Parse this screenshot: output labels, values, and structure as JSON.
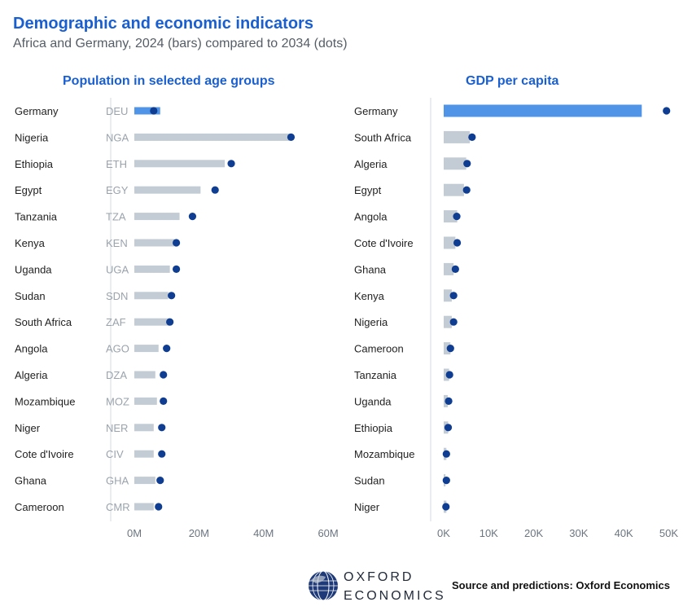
{
  "title": "Demographic and economic indicators",
  "subtitle": "Africa and Germany, 2024 (bars) compared to 2034 (dots)",
  "source": "Source and predictions: Oxford Economics",
  "logo": {
    "line1": "OXFORD",
    "line2": "ECONOMICS"
  },
  "colors": {
    "highlight_bar": "#4f94e6",
    "bar": "#c3ccd4",
    "dot": "#0f3d91",
    "title": "#1a5fd0"
  },
  "chart_data": [
    {
      "type": "bar",
      "title": "Population in selected age groups",
      "categories": [
        "Germany",
        "Nigeria",
        "Ethiopia",
        "Egypt",
        "Tanzania",
        "Kenya",
        "Uganda",
        "Sudan",
        "South Africa",
        "Angola",
        "Algeria",
        "Mozambique",
        "Niger",
        "Cote d'Ivoire",
        "Ghana",
        "Cameroon"
      ],
      "codes": [
        "DEU",
        "NGA",
        "ETH",
        "EGY",
        "TZA",
        "KEN",
        "UGA",
        "SDN",
        "ZAF",
        "AGO",
        "DZA",
        "MOZ",
        "NER",
        "CIV",
        "GHA",
        "CMR"
      ],
      "series": [
        {
          "name": "2024",
          "values": [
            8,
            48,
            28,
            20.5,
            14,
            12.5,
            11,
            10.5,
            11,
            7.5,
            6.5,
            7,
            6,
            6,
            6.5,
            6
          ]
        },
        {
          "name": "2034",
          "values": [
            6,
            48.5,
            30,
            25,
            18,
            13,
            13,
            11.5,
            11,
            10,
            9,
            9,
            8.5,
            8.5,
            8,
            7.5
          ]
        }
      ],
      "xlim": [
        0,
        63
      ],
      "xticks": [
        0,
        20,
        40,
        60
      ],
      "xtick_labels": [
        "0M",
        "20M",
        "40M",
        "60M"
      ],
      "highlight": "Germany",
      "grid": false
    },
    {
      "type": "bar",
      "title": "GDP per capita",
      "categories": [
        "Germany",
        "South Africa",
        "Algeria",
        "Egypt",
        "Angola",
        "Cote d'Ivoire",
        "Ghana",
        "Kenya",
        "Nigeria",
        "Cameroon",
        "Tanzania",
        "Uganda",
        "Ethiopia",
        "Mozambique",
        "Sudan",
        "Niger"
      ],
      "series": [
        {
          "name": "2024",
          "values": [
            44,
            5.8,
            5.0,
            4.5,
            3.0,
            2.6,
            2.2,
            1.8,
            1.8,
            1.5,
            1.2,
            0.9,
            1.0,
            0.6,
            0.4,
            0.6
          ]
        },
        {
          "name": "2034",
          "values": [
            49.5,
            6.3,
            5.2,
            5.1,
            2.9,
            3.0,
            2.6,
            2.2,
            2.2,
            1.5,
            1.3,
            1.1,
            1.0,
            0.6,
            0.6,
            0.5
          ]
        }
      ],
      "xlim": [
        0,
        51
      ],
      "xticks": [
        0,
        10,
        20,
        30,
        40,
        50
      ],
      "xtick_labels": [
        "0K",
        "10K",
        "20K",
        "30K",
        "40K",
        "50K"
      ],
      "highlight": "Germany",
      "grid": false
    }
  ]
}
